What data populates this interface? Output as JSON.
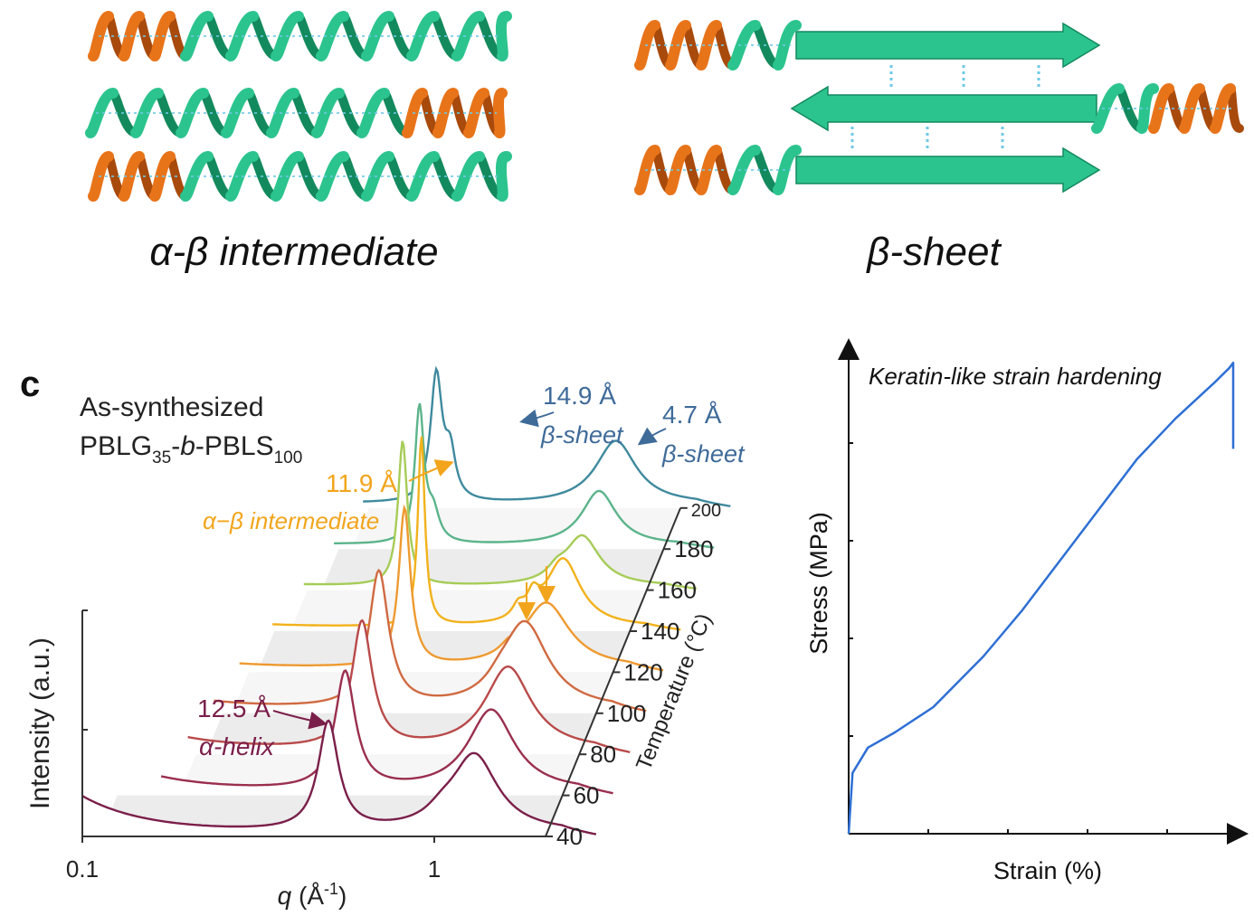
{
  "schematics": {
    "left_label": "α-β intermediate",
    "right_label": "β-sheet"
  },
  "panel_c": {
    "panel_letter": "c",
    "title_line1": "As-synthesized",
    "polymer": {
      "a": "PBLG",
      "a_sub": "35",
      "sep1": "-",
      "b": "b",
      "sep2": "-PBLS",
      "b_sub": "100"
    },
    "xlabel_q": "q",
    "xlabel_unit_open": " (Å",
    "xlabel_unit_sup": "-1",
    "xlabel_unit_close": ")",
    "ylabel": "Intensity (a.u.)",
    "zlabel": "Temperature (°C)",
    "x_ticks": [
      "0.1",
      "1"
    ],
    "temperature_ticks": [
      "40",
      "60",
      "80",
      "100",
      "120",
      "140",
      "160",
      "180",
      "200"
    ],
    "annotations": {
      "d125": "12.5 Å",
      "alpha_helix": "α-helix",
      "d119": "11.9 Å",
      "intermediate": "α−β intermediate",
      "d149": "14.9 Å",
      "beta1": "β-sheet",
      "d47": "4.7 Å",
      "beta2": "β-sheet"
    },
    "colors": {
      "alpha": "#7a1f4a",
      "intermediate": "#f2a51c",
      "beta": "#3f6b99"
    }
  },
  "panel_stress": {
    "title": "Keratin-like strain hardening",
    "xlabel": "Strain (%)",
    "ylabel": "Stress (MPa)",
    "line_color": "#2e6fd4"
  },
  "chart_data": [
    {
      "type": "line",
      "title": "",
      "xlabel": "q (Å-1)",
      "ylabel": "Intensity (a.u.)",
      "xscale": "log",
      "xlim": [
        0.1,
        3
      ],
      "x_ticks": [
        0.1,
        1
      ],
      "z_axis": "Temperature (°C)",
      "series": [
        {
          "name": "40",
          "peaks_q": [
            0.5,
            1.3
          ],
          "color": "#7a1f4a"
        },
        {
          "name": "60",
          "peaks_q": [
            0.5,
            1.3
          ],
          "color": "#9a2f4e"
        },
        {
          "name": "80",
          "peaks_q": [
            0.5,
            1.3
          ],
          "color": "#b94a4a"
        },
        {
          "name": "100",
          "peaks_q": [
            0.5,
            1.3
          ],
          "color": "#d06a42"
        },
        {
          "name": "120",
          "peaks_q": [
            0.53,
            1.34
          ],
          "color": "#ee9a30"
        },
        {
          "name": "140",
          "peaks_q": [
            0.53,
            1.0,
            1.1,
            1.34
          ],
          "color": "#f2b21c"
        },
        {
          "name": "160",
          "peaks_q": [
            0.42,
            1.36
          ],
          "color": "#a6cc57"
        },
        {
          "name": "180",
          "peaks_q": [
            0.42,
            1.36
          ],
          "color": "#5bb48a"
        },
        {
          "name": "200",
          "peaks_q": [
            0.42,
            1.36
          ],
          "color": "#3f8a9e"
        }
      ],
      "annotations": [
        "12.5 Å α-helix",
        "11.9 Å α−β intermediate",
        "14.9 Å β-sheet",
        "4.7 Å β-sheet"
      ]
    },
    {
      "type": "line",
      "title": "Keratin-like strain hardening",
      "xlabel": "Strain (%)",
      "ylabel": "Stress (MPa)",
      "series": [
        {
          "name": "",
          "x": [
            0,
            0.01,
            0.05,
            0.12,
            0.22,
            0.35,
            0.45,
            0.55,
            0.65,
            0.75,
            0.85,
            0.95,
            0.99,
            1.0,
            1.0
          ],
          "y": [
            0,
            0.12,
            0.17,
            0.2,
            0.25,
            0.35,
            0.44,
            0.54,
            0.64,
            0.74,
            0.82,
            0.89,
            0.92,
            0.93,
            0.76
          ]
        }
      ],
      "xlim": [
        0,
        1.0
      ],
      "ylim": [
        0,
        1.0
      ]
    }
  ]
}
